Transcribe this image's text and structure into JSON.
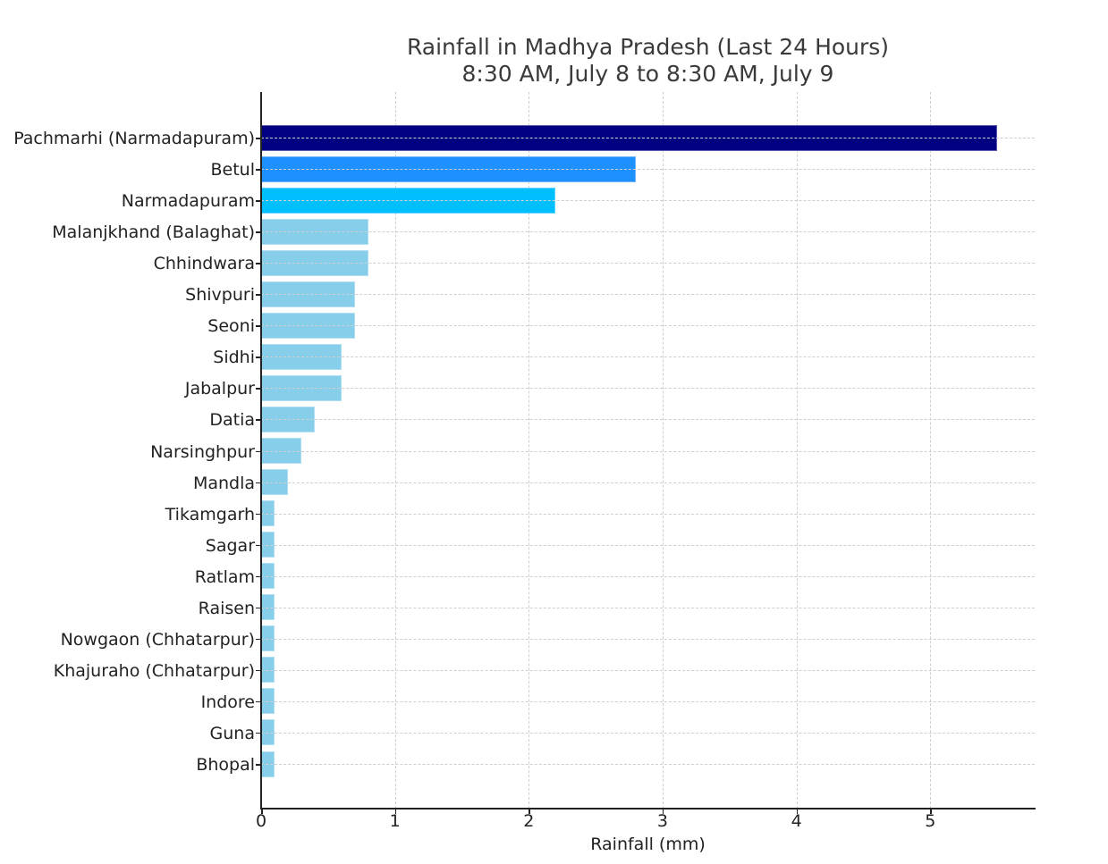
{
  "chart_data": {
    "type": "bar",
    "orientation": "horizontal",
    "title": "Rainfall in Madhya Pradesh (Last 24 Hours)",
    "subtitle": "8:30 AM, July 8 to 8:30 AM, July 9",
    "xlabel": "Rainfall (mm)",
    "ylabel": "",
    "xlim": [
      0,
      5.78
    ],
    "xticks": [
      "0",
      "1",
      "2",
      "3",
      "4",
      "5"
    ],
    "grid": true,
    "legend": false,
    "categories": [
      "Pachmarhi (Narmadapuram)",
      "Betul",
      "Narmadapuram",
      "Malanjkhand (Balaghat)",
      "Chhindwara",
      "Shivpuri",
      "Seoni",
      "Sidhi",
      "Jabalpur",
      "Datia",
      "Narsinghpur",
      "Mandla",
      "Tikamgarh",
      "Sagar",
      "Ratlam",
      "Raisen",
      "Nowgaon (Chhatarpur)",
      "Khajuraho (Chhatarpur)",
      "Indore",
      "Guna",
      "Bhopal"
    ],
    "values": [
      5.5,
      2.8,
      2.2,
      0.8,
      0.8,
      0.7,
      0.7,
      0.6,
      0.6,
      0.4,
      0.3,
      0.2,
      0.1,
      0.1,
      0.1,
      0.1,
      0.1,
      0.1,
      0.1,
      0.1,
      0.1
    ],
    "colors": [
      "#000080",
      "#1e90ff",
      "#00bfff",
      "#87ceeb",
      "#87ceeb",
      "#87ceeb",
      "#87ceeb",
      "#87ceeb",
      "#87ceeb",
      "#87ceeb",
      "#87ceeb",
      "#87ceeb",
      "#87ceeb",
      "#87ceeb",
      "#87ceeb",
      "#87ceeb",
      "#87ceeb",
      "#87ceeb",
      "#87ceeb",
      "#87ceeb",
      "#87ceeb"
    ]
  }
}
